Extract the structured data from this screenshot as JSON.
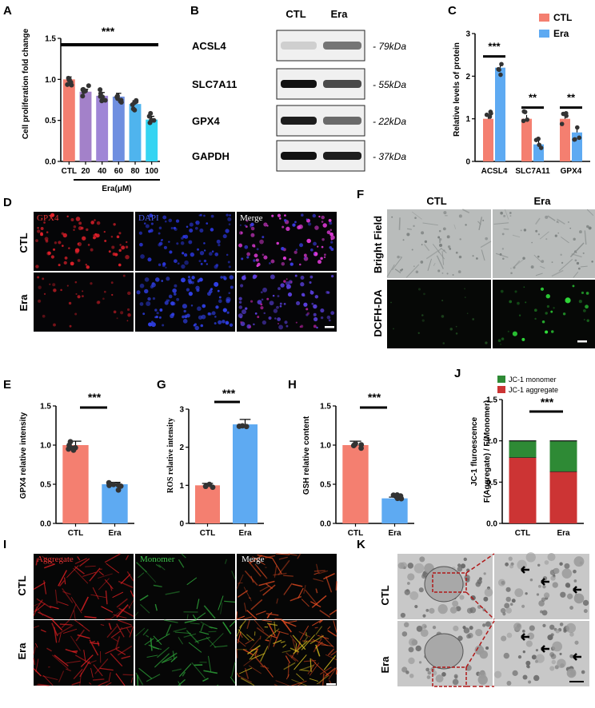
{
  "panels": {
    "A": {
      "label": "A",
      "ylabel": "Cell proliferation fold change",
      "xgroup_label": "Era(μM)",
      "significance": "***",
      "chart_data": {
        "type": "bar",
        "categories": [
          "CTL",
          "20",
          "40",
          "60",
          "80",
          "100"
        ],
        "values": [
          1.0,
          0.85,
          0.8,
          0.79,
          0.7,
          0.51
        ],
        "errors": [
          0.03,
          0.03,
          0.04,
          0.04,
          0.04,
          0.04
        ],
        "ylim": [
          0,
          1.5
        ],
        "yticks": [
          "0.0",
          "0.5",
          "1.0",
          "1.5"
        ],
        "colors": [
          "#f47f70",
          "#a381c9",
          "#9f86d6",
          "#6f8fe0",
          "#4fb4ee",
          "#35d4f2"
        ]
      }
    },
    "B": {
      "label": "B",
      "columns": [
        "CTL",
        "Era"
      ],
      "blots": [
        {
          "name": "ACSL4",
          "kda": "- 79kDa"
        },
        {
          "name": "SLC7A11",
          "kda": "- 55kDa"
        },
        {
          "name": "GPX4",
          "kda": "- 22kDa"
        },
        {
          "name": "GAPDH",
          "kda": "- 37kDa"
        }
      ]
    },
    "C": {
      "label": "C",
      "ylabel": "Relative levels of protein",
      "legend": [
        "CTL",
        "Era"
      ],
      "significance": [
        "***",
        "**",
        "**"
      ],
      "chart_data": {
        "type": "bar",
        "categories": [
          "ACSL4",
          "SLC7A11",
          "GPX4"
        ],
        "series": [
          {
            "name": "CTL",
            "values": [
              1.0,
              1.0,
              1.0
            ]
          },
          {
            "name": "Era",
            "values": [
              2.2,
              0.4,
              0.68
            ]
          }
        ],
        "ylim": [
          0,
          3
        ],
        "yticks": [
          "0",
          "1",
          "2",
          "3"
        ],
        "colors": [
          "#f47f70",
          "#5eaaf2"
        ]
      }
    },
    "D": {
      "label": "D",
      "channels": [
        "GPX4",
        "DAPI",
        "Merge"
      ],
      "rows": [
        "CTL",
        "Era"
      ]
    },
    "F": {
      "label": "F",
      "columns": [
        "CTL",
        "Era"
      ],
      "rows": [
        "Bright Field",
        "DCFH-DA"
      ]
    },
    "E": {
      "label": "E",
      "ylabel": "GPX4 relative intensity",
      "significance": "***",
      "chart_data": {
        "type": "bar",
        "categories": [
          "CTL",
          "Era"
        ],
        "values": [
          1.0,
          0.5
        ],
        "ylim": [
          0,
          1.5
        ],
        "yticks": [
          "0.0",
          "0.5",
          "1.0",
          "1.5"
        ],
        "colors": [
          "#f47f70",
          "#5eaaf2"
        ]
      }
    },
    "G": {
      "label": "G",
      "ylabel": "ROS relative intensity",
      "significance": "***",
      "chart_data": {
        "type": "bar",
        "categories": [
          "CTL",
          "Era"
        ],
        "values": [
          1.0,
          2.6
        ],
        "ylim": [
          0,
          3
        ],
        "yticks": [
          "0",
          "1",
          "2",
          "3"
        ],
        "colors": [
          "#f47f70",
          "#5eaaf2"
        ]
      }
    },
    "H": {
      "label": "H",
      "ylabel": "GSH relative content",
      "significance": "***",
      "chart_data": {
        "type": "bar",
        "categories": [
          "CTL",
          "Era"
        ],
        "values": [
          1.0,
          0.32
        ],
        "ylim": [
          0,
          1.5
        ],
        "yticks": [
          "0.0",
          "0.5",
          "1.0",
          "1.5"
        ],
        "colors": [
          "#f47f70",
          "#5eaaf2"
        ]
      }
    },
    "J": {
      "label": "J",
      "ylabel_main": "JC-1 fluroescence",
      "ylabel_sub": "F(Aggregate) / F(Monomer)",
      "legend": [
        "JC-1 monomer",
        "JC-1 aggregate"
      ],
      "significance": "***",
      "chart_data": {
        "type": "bar",
        "categories": [
          "CTL",
          "Era"
        ],
        "series": [
          {
            "name": "JC-1 aggregate",
            "values": [
              0.8,
              0.63
            ]
          },
          {
            "name": "JC-1 monomer",
            "values": [
              0.2,
              0.37
            ]
          }
        ],
        "ylim": [
          0,
          1.5
        ],
        "yticks": [
          "0.0",
          "0.5",
          "1.0",
          "1.5"
        ],
        "colors": [
          "#cc3434",
          "#2e8a35"
        ]
      }
    },
    "I": {
      "label": "I",
      "channels": [
        "Aggregate",
        "Monomer",
        "Merge"
      ],
      "rows": [
        "CTL",
        "Era"
      ]
    },
    "K": {
      "label": "K",
      "rows": [
        "CTL",
        "Era"
      ]
    }
  }
}
